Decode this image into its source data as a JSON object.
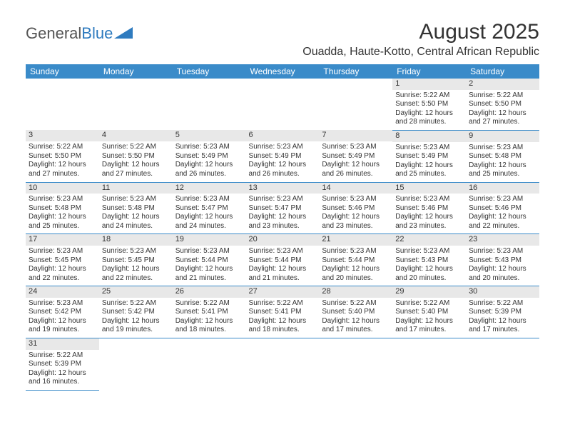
{
  "logo": {
    "part1": "General",
    "part2": "Blue",
    "triangle_color": "#2f7bbf"
  },
  "title": {
    "month": "August 2025",
    "location": "Ouadda, Haute-Kotto, Central African Republic"
  },
  "colors": {
    "header_bg": "#3a8bc9",
    "header_text": "#ffffff",
    "daynum_bg": "#e8e8e8",
    "text": "#333333",
    "rule": "#3a8bc9"
  },
  "day_headers": [
    "Sunday",
    "Monday",
    "Tuesday",
    "Wednesday",
    "Thursday",
    "Friday",
    "Saturday"
  ],
  "weeks": [
    [
      null,
      null,
      null,
      null,
      null,
      {
        "n": "1",
        "sunrise": "5:22 AM",
        "sunset": "5:50 PM",
        "daylight": "12 hours and 28 minutes."
      },
      {
        "n": "2",
        "sunrise": "5:22 AM",
        "sunset": "5:50 PM",
        "daylight": "12 hours and 27 minutes."
      }
    ],
    [
      {
        "n": "3",
        "sunrise": "5:22 AM",
        "sunset": "5:50 PM",
        "daylight": "12 hours and 27 minutes."
      },
      {
        "n": "4",
        "sunrise": "5:22 AM",
        "sunset": "5:50 PM",
        "daylight": "12 hours and 27 minutes."
      },
      {
        "n": "5",
        "sunrise": "5:23 AM",
        "sunset": "5:49 PM",
        "daylight": "12 hours and 26 minutes."
      },
      {
        "n": "6",
        "sunrise": "5:23 AM",
        "sunset": "5:49 PM",
        "daylight": "12 hours and 26 minutes."
      },
      {
        "n": "7",
        "sunrise": "5:23 AM",
        "sunset": "5:49 PM",
        "daylight": "12 hours and 26 minutes."
      },
      {
        "n": "8",
        "sunrise": "5:23 AM",
        "sunset": "5:49 PM",
        "daylight": "12 hours and 25 minutes."
      },
      {
        "n": "9",
        "sunrise": "5:23 AM",
        "sunset": "5:48 PM",
        "daylight": "12 hours and 25 minutes."
      }
    ],
    [
      {
        "n": "10",
        "sunrise": "5:23 AM",
        "sunset": "5:48 PM",
        "daylight": "12 hours and 25 minutes."
      },
      {
        "n": "11",
        "sunrise": "5:23 AM",
        "sunset": "5:48 PM",
        "daylight": "12 hours and 24 minutes."
      },
      {
        "n": "12",
        "sunrise": "5:23 AM",
        "sunset": "5:47 PM",
        "daylight": "12 hours and 24 minutes."
      },
      {
        "n": "13",
        "sunrise": "5:23 AM",
        "sunset": "5:47 PM",
        "daylight": "12 hours and 23 minutes."
      },
      {
        "n": "14",
        "sunrise": "5:23 AM",
        "sunset": "5:46 PM",
        "daylight": "12 hours and 23 minutes."
      },
      {
        "n": "15",
        "sunrise": "5:23 AM",
        "sunset": "5:46 PM",
        "daylight": "12 hours and 23 minutes."
      },
      {
        "n": "16",
        "sunrise": "5:23 AM",
        "sunset": "5:46 PM",
        "daylight": "12 hours and 22 minutes."
      }
    ],
    [
      {
        "n": "17",
        "sunrise": "5:23 AM",
        "sunset": "5:45 PM",
        "daylight": "12 hours and 22 minutes."
      },
      {
        "n": "18",
        "sunrise": "5:23 AM",
        "sunset": "5:45 PM",
        "daylight": "12 hours and 22 minutes."
      },
      {
        "n": "19",
        "sunrise": "5:23 AM",
        "sunset": "5:44 PM",
        "daylight": "12 hours and 21 minutes."
      },
      {
        "n": "20",
        "sunrise": "5:23 AM",
        "sunset": "5:44 PM",
        "daylight": "12 hours and 21 minutes."
      },
      {
        "n": "21",
        "sunrise": "5:23 AM",
        "sunset": "5:44 PM",
        "daylight": "12 hours and 20 minutes."
      },
      {
        "n": "22",
        "sunrise": "5:23 AM",
        "sunset": "5:43 PM",
        "daylight": "12 hours and 20 minutes."
      },
      {
        "n": "23",
        "sunrise": "5:23 AM",
        "sunset": "5:43 PM",
        "daylight": "12 hours and 20 minutes."
      }
    ],
    [
      {
        "n": "24",
        "sunrise": "5:23 AM",
        "sunset": "5:42 PM",
        "daylight": "12 hours and 19 minutes."
      },
      {
        "n": "25",
        "sunrise": "5:22 AM",
        "sunset": "5:42 PM",
        "daylight": "12 hours and 19 minutes."
      },
      {
        "n": "26",
        "sunrise": "5:22 AM",
        "sunset": "5:41 PM",
        "daylight": "12 hours and 18 minutes."
      },
      {
        "n": "27",
        "sunrise": "5:22 AM",
        "sunset": "5:41 PM",
        "daylight": "12 hours and 18 minutes."
      },
      {
        "n": "28",
        "sunrise": "5:22 AM",
        "sunset": "5:40 PM",
        "daylight": "12 hours and 17 minutes."
      },
      {
        "n": "29",
        "sunrise": "5:22 AM",
        "sunset": "5:40 PM",
        "daylight": "12 hours and 17 minutes."
      },
      {
        "n": "30",
        "sunrise": "5:22 AM",
        "sunset": "5:39 PM",
        "daylight": "12 hours and 17 minutes."
      }
    ],
    [
      {
        "n": "31",
        "sunrise": "5:22 AM",
        "sunset": "5:39 PM",
        "daylight": "12 hours and 16 minutes."
      },
      null,
      null,
      null,
      null,
      null,
      null
    ]
  ],
  "labels": {
    "sunrise": "Sunrise: ",
    "sunset": "Sunset: ",
    "daylight": "Daylight: "
  }
}
